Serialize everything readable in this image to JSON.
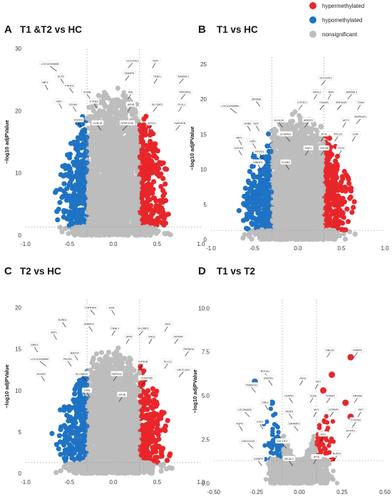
{
  "legend": {
    "items": [
      {
        "label": "hypermethylated",
        "color": "#e8262a"
      },
      {
        "label": "hypomethylated",
        "color": "#1f73c4"
      },
      {
        "label": "nonsignificant",
        "color": "#bdbdbd"
      }
    ]
  },
  "colors": {
    "hyper": "#e8262a",
    "hypo": "#1f73c4",
    "ns": "#bdbdbd"
  },
  "chart_data": [
    {
      "type": "scatter",
      "panel": "A",
      "title": "T1 &T2 vs HC",
      "ylabel": "−log10 adjPValue",
      "xlabel": "",
      "xlim": [
        -1.0,
        1.0
      ],
      "ylim": [
        0,
        30
      ],
      "xticks": [
        "-1.0",
        "-0.5",
        "0.0",
        "0.5",
        "1.0"
      ],
      "xtick_values": [
        -1.0,
        -0.5,
        0.0,
        0.5,
        1.0
      ],
      "yticks": [
        "0",
        "10",
        "20",
        "30"
      ],
      "ytick_values": [
        0,
        10,
        20,
        30
      ],
      "thresholds": {
        "x": [
          -0.3,
          0.3
        ],
        "y": 1.3
      },
      "top_peak": 24,
      "labels": [
        {
          "text": "LOC101928650",
          "x": -0.72,
          "y": 27.5
        },
        {
          "text": "DLX5",
          "x": -0.6,
          "y": 25.5
        },
        {
          "text": "XBP1",
          "x": -0.78,
          "y": 24.5
        },
        {
          "text": "PIK2D2",
          "x": -0.5,
          "y": 24.0
        },
        {
          "text": "ISPD",
          "x": -0.62,
          "y": 21.5
        },
        {
          "text": "CD160",
          "x": -0.46,
          "y": 21.0
        },
        {
          "text": "S100B",
          "x": -0.3,
          "y": 23.0
        },
        {
          "text": "CCNE2",
          "x": -0.22,
          "y": 21.5
        },
        {
          "text": "DSCR3",
          "x": -0.4,
          "y": 18.5
        },
        {
          "text": "KLHL28",
          "x": -0.18,
          "y": 18.0
        },
        {
          "text": "SLC22A12",
          "x": 0.22,
          "y": 28.0
        },
        {
          "text": "NXN",
          "x": 0.48,
          "y": 28.0
        },
        {
          "text": "GIMAP5",
          "x": 0.18,
          "y": 26.0
        },
        {
          "text": "TSN21",
          "x": 0.5,
          "y": 25.5
        },
        {
          "text": "RAD54L2",
          "x": 0.8,
          "y": 25.5
        },
        {
          "text": "PPP2R5C",
          "x": 0.82,
          "y": 23.0
        },
        {
          "text": "AVIL",
          "x": 0.2,
          "y": 23.0
        },
        {
          "text": "APOB",
          "x": 0.2,
          "y": 21.0
        },
        {
          "text": "SLC35F3",
          "x": 0.5,
          "y": 21.0
        },
        {
          "text": "PLCL2",
          "x": 0.78,
          "y": 21.0
        },
        {
          "text": "GPATCH2L",
          "x": 0.16,
          "y": 18.0
        },
        {
          "text": "ATG10",
          "x": 0.44,
          "y": 18.0
        },
        {
          "text": "FAM167B",
          "x": 0.76,
          "y": 18.0
        }
      ]
    },
    {
      "type": "scatter",
      "panel": "B",
      "title": "T1 vs HC",
      "ylabel": "−log10 adjPValue",
      "xlabel": "",
      "xlim": [
        -1.0,
        1.0
      ],
      "ylim": [
        0,
        26
      ],
      "xticks": [
        "-1.0",
        "-0.5",
        "0.0",
        "0.5",
        "1.0"
      ],
      "xtick_values": [
        -1.0,
        -0.5,
        0.0,
        0.5,
        1.0
      ],
      "yticks": [
        "0",
        "5",
        "10",
        "15",
        "20",
        "25"
      ],
      "ytick_values": [
        0,
        5,
        10,
        15,
        20,
        25
      ],
      "thresholds": {
        "x": [
          -0.3,
          0.3
        ],
        "y": 1.3
      },
      "top_peak": 18.5,
      "labels": [
        {
          "text": "SLC22A12",
          "x": 0.32,
          "y": 23.0
        },
        {
          "text": "NXN",
          "x": 0.38,
          "y": 21.0
        },
        {
          "text": "NHSL1",
          "x": 0.22,
          "y": 21.0
        },
        {
          "text": "RAD54L2",
          "x": 0.62,
          "y": 21.0
        },
        {
          "text": "GTF3C1",
          "x": 0.05,
          "y": 19.5
        },
        {
          "text": "C9orf29",
          "x": 0.3,
          "y": 19.5
        },
        {
          "text": "ZNF324D",
          "x": 0.5,
          "y": 19.5
        },
        {
          "text": "TSAN",
          "x": 0.72,
          "y": 19.5
        },
        {
          "text": "MAPKAP1",
          "x": 0.72,
          "y": 17.5
        },
        {
          "text": "ZBTB38",
          "x": -0.48,
          "y": 20.0
        },
        {
          "text": "LOC101928650",
          "x": -0.78,
          "y": 19.0
        },
        {
          "text": "KLHL28",
          "x": -0.22,
          "y": 17.0
        },
        {
          "text": "UBE2E2",
          "x": 0.12,
          "y": 17.0
        },
        {
          "text": "AKT3",
          "x": 0.55,
          "y": 17.0
        },
        {
          "text": "GNB4",
          "x": -0.58,
          "y": 16.5
        },
        {
          "text": "SDC",
          "x": -0.48,
          "y": 16.5
        },
        {
          "text": "ZC3HAV1",
          "x": -0.14,
          "y": 15.0
        },
        {
          "text": "ZFX2",
          "x": 0.3,
          "y": 15.0
        },
        {
          "text": "TRCD3",
          "x": 0.46,
          "y": 15.0
        },
        {
          "text": "CGN",
          "x": 0.66,
          "y": 15.0
        },
        {
          "text": "XBP1",
          "x": -0.68,
          "y": 14.5
        },
        {
          "text": "ISPD",
          "x": -0.52,
          "y": 14.0
        },
        {
          "text": "DOCK4",
          "x": -0.68,
          "y": 13.0
        },
        {
          "text": "PIK2D2",
          "x": -0.44,
          "y": 12.5
        },
        {
          "text": "RAF1",
          "x": 0.12,
          "y": 13.0
        },
        {
          "text": "CNTN6",
          "x": 0.3,
          "y": 13.0
        },
        {
          "text": "SOX1",
          "x": 0.5,
          "y": 13.0
        },
        {
          "text": "WBDE3",
          "x": -0.46,
          "y": 11.0
        },
        {
          "text": "CCNE2",
          "x": -0.14,
          "y": 11.0
        }
      ]
    },
    {
      "type": "scatter",
      "panel": "C",
      "title": "T2 vs HC",
      "ylabel": "−log10 adjPValue",
      "xlabel": "",
      "xlim": [
        -1.0,
        1.0
      ],
      "ylim": [
        0,
        21
      ],
      "xticks": [
        "-1.0",
        "-0.5",
        "0.0",
        "0.5",
        "1.0"
      ],
      "xtick_values": [
        -1.0,
        -0.5,
        0.0,
        0.5,
        1.0
      ],
      "yticks": [
        "0",
        "5",
        "10",
        "15",
        "20"
      ],
      "ytick_values": [
        0,
        5,
        10,
        15,
        20
      ],
      "thresholds": {
        "x": [
          -0.3,
          0.3
        ],
        "y": 1.3
      },
      "top_peak": 15.5,
      "labels": [
        {
          "text": "TNFRSF9",
          "x": -0.26,
          "y": 20.0
        },
        {
          "text": "NXN",
          "x": -0.02,
          "y": 20.0
        },
        {
          "text": "EURD1",
          "x": -0.58,
          "y": 18.5
        },
        {
          "text": "SHBPF5",
          "x": -0.28,
          "y": 18.0
        },
        {
          "text": "NXN",
          "x": 0.62,
          "y": 18.0
        },
        {
          "text": "FMNL2",
          "x": 0.02,
          "y": 17.5
        },
        {
          "text": "SLC35F3",
          "x": 0.34,
          "y": 17.5
        },
        {
          "text": "XBP1",
          "x": -0.68,
          "y": 17.0
        },
        {
          "text": "GPA2",
          "x": 0.18,
          "y": 16.5
        },
        {
          "text": "SHQ1",
          "x": 0.44,
          "y": 16.5
        },
        {
          "text": "ZBTB46",
          "x": 0.74,
          "y": 16.5
        },
        {
          "text": "GRIK1",
          "x": -0.9,
          "y": 15.5
        },
        {
          "text": "PRDM16",
          "x": 0.86,
          "y": 15.0
        },
        {
          "text": "BACH2",
          "x": -0.44,
          "y": 14.5
        },
        {
          "text": "LOC101928650",
          "x": -0.84,
          "y": 13.8
        },
        {
          "text": "PIK2D2",
          "x": -0.52,
          "y": 13.8
        },
        {
          "text": "KIF5DB",
          "x": 0.34,
          "y": 13.5
        },
        {
          "text": "PLCL2",
          "x": 0.62,
          "y": 13.5
        },
        {
          "text": "UHCD-AS1",
          "x": 0.8,
          "y": 12.5
        },
        {
          "text": "BCAR2",
          "x": -0.82,
          "y": 12.0
        },
        {
          "text": "SLC38A10",
          "x": -0.36,
          "y": 12.0
        },
        {
          "text": "PNPDG2",
          "x": 0.04,
          "y": 12.0
        },
        {
          "text": "C14orf166",
          "x": 0.38,
          "y": 11.5
        },
        {
          "text": "KIF6",
          "x": -0.3,
          "y": 10.0
        },
        {
          "text": "APOB",
          "x": 0.1,
          "y": 9.5
        }
      ]
    },
    {
      "type": "scatter",
      "panel": "D",
      "title": "T1 vs T2",
      "ylabel": "−log10 adjPValue",
      "xlabel": "",
      "xlim": [
        -0.5,
        0.5
      ],
      "ylim": [
        0,
        10.5
      ],
      "xticks": [
        "-0.50",
        "-0.25",
        "0.00",
        "0.25",
        "0.50"
      ],
      "xtick_values": [
        -0.5,
        -0.25,
        0.0,
        0.25,
        0.5
      ],
      "yticks": [
        "0.0",
        "2.5",
        "5.0",
        "7.5",
        "10.0"
      ],
      "ytick_values": [
        0,
        2.5,
        5,
        7.5,
        10
      ],
      "thresholds": {
        "x": [
          -0.1,
          0.1
        ],
        "y": 1.3
      },
      "top_peak": 4.4,
      "points_highlight": [
        {
          "x": 0.3,
          "y": 7.2,
          "class": "hyper"
        },
        {
          "x": 0.19,
          "y": 6.2,
          "class": "hyper"
        },
        {
          "x": 0.27,
          "y": 4.6,
          "class": "hyper"
        },
        {
          "x": 0.3,
          "y": 3.8,
          "class": "hyper"
        },
        {
          "x": 0.14,
          "y": 5.3,
          "class": "hyper"
        },
        {
          "x": -0.26,
          "y": 5.8,
          "class": "hypo"
        },
        {
          "x": -0.16,
          "y": 4.6,
          "class": "hypo"
        }
      ],
      "labels": [
        {
          "text": "ABCA1",
          "x": 0.18,
          "y": 7.6
        },
        {
          "text": "IPARP4",
          "x": 0.34,
          "y": 7.6
        },
        {
          "text": "ROCK1",
          "x": -0.2,
          "y": 6.4
        },
        {
          "text": "OAS1",
          "x": 0.02,
          "y": 6.0
        },
        {
          "text": "MX1",
          "x": 0.11,
          "y": 5.8
        },
        {
          "text": "TMEM131",
          "x": -0.28,
          "y": 5.6
        },
        {
          "text": "IFNGR1",
          "x": -0.18,
          "y": 6.0
        },
        {
          "text": "TRIM22",
          "x": 0.18,
          "y": 5.0
        },
        {
          "text": "ARHSB",
          "x": 0.34,
          "y": 5.0
        },
        {
          "text": "CD38",
          "x": 0.08,
          "y": 5.0
        },
        {
          "text": "CFAP51",
          "x": -0.06,
          "y": 5.0
        },
        {
          "text": "VRK2",
          "x": -0.2,
          "y": 4.6
        },
        {
          "text": "LOC284825",
          "x": -0.32,
          "y": 4.2
        },
        {
          "text": "IRF7",
          "x": 0.36,
          "y": 4.2
        },
        {
          "text": "MX1",
          "x": 0.1,
          "y": 4.2
        },
        {
          "text": "GTPBP2",
          "x": 0.2,
          "y": 4.2
        },
        {
          "text": "TASK3",
          "x": -0.06,
          "y": 4.1
        },
        {
          "text": "CYSTM1",
          "x": 0.33,
          "y": 3.6
        },
        {
          "text": "CHD7",
          "x": -0.23,
          "y": 3.5
        },
        {
          "text": "AQP9",
          "x": -0.35,
          "y": 3.4
        },
        {
          "text": "GRAMD3",
          "x": -0.03,
          "y": 3.4
        },
        {
          "text": "EPSTI1",
          "x": 0.3,
          "y": 3.0
        },
        {
          "text": "MX1",
          "x": 0.14,
          "y": 2.8
        },
        {
          "text": "LINC01224",
          "x": -0.3,
          "y": 2.4
        },
        {
          "text": "SULT1E1",
          "x": -0.1,
          "y": 2.4
        },
        {
          "text": "RUNX1",
          "x": 0.22,
          "y": 1.7
        },
        {
          "text": "IGFBP5",
          "x": -0.24,
          "y": 1.4
        },
        {
          "text": "MICAL2",
          "x": -0.06,
          "y": 1.4
        },
        {
          "text": "IFIT5",
          "x": 0.1,
          "y": 1.5
        }
      ]
    }
  ]
}
